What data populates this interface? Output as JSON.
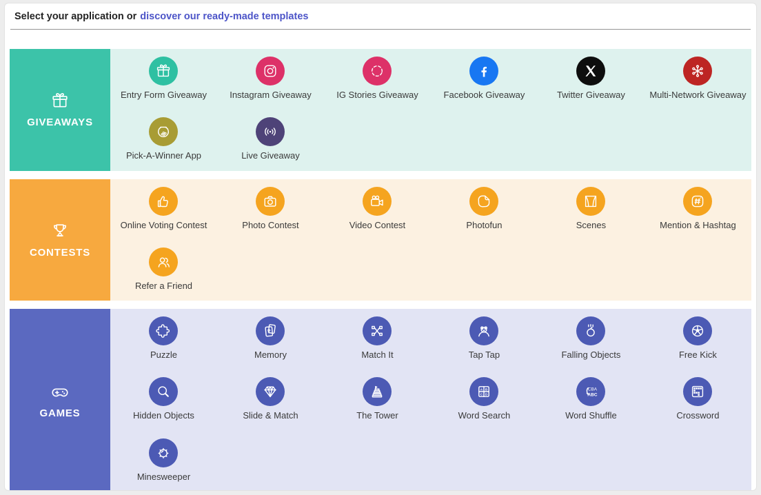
{
  "header": {
    "title_prefix": "Select your application or",
    "link_label": "discover our ready-made templates",
    "link_color": "#4d55c8",
    "divider_color": "#949494"
  },
  "sections": [
    {
      "id": "giveaways",
      "label": "GIVEAWAYS",
      "icon": "gift-icon",
      "block_color": "#3cc3a9",
      "bg_color": "#def2ee",
      "items": [
        {
          "label": "Entry Form Giveaway",
          "icon": "gift-icon",
          "color": "#2ec0a2"
        },
        {
          "label": "Instagram Giveaway",
          "icon": "instagram-icon",
          "color": "#dd3168"
        },
        {
          "label": "IG Stories Giveaway",
          "icon": "ig-stories-icon",
          "color": "#dd3168"
        },
        {
          "label": "Facebook Giveaway",
          "icon": "facebook-icon",
          "color": "#1877f2"
        },
        {
          "label": "Twitter Giveaway",
          "icon": "x-logo-icon",
          "color": "#0e0e0e"
        },
        {
          "label": "Multi-Network Giveaway",
          "icon": "multi-network-icon",
          "color": "#bd2523"
        },
        {
          "label": "Pick-A-Winner App",
          "icon": "fishbowl-icon",
          "color": "#a89c34"
        },
        {
          "label": "Live Giveaway",
          "icon": "broadcast-icon",
          "color": "#4e4378"
        }
      ]
    },
    {
      "id": "contests",
      "label": "CONTESTS",
      "icon": "trophy-icon",
      "block_color": "#f7a93f",
      "bg_color": "#fcf1e1",
      "items": [
        {
          "label": "Online Voting Contest",
          "icon": "thumbs-up-icon",
          "color": "#f5a41f"
        },
        {
          "label": "Photo Contest",
          "icon": "camera-icon",
          "color": "#f5a41f"
        },
        {
          "label": "Video Contest",
          "icon": "video-camera-icon",
          "color": "#f5a41f"
        },
        {
          "label": "Photofun",
          "icon": "sticker-icon",
          "color": "#f5a41f"
        },
        {
          "label": "Scenes",
          "icon": "scenes-icon",
          "color": "#f5a41f"
        },
        {
          "label": "Mention & Hashtag",
          "icon": "hashtag-icon",
          "color": "#f5a41f"
        },
        {
          "label": "Refer a Friend",
          "icon": "refer-friend-icon",
          "color": "#f5a41f"
        }
      ]
    },
    {
      "id": "games",
      "label": "GAMES",
      "icon": "gamepad-icon",
      "block_color": "#5b69c0",
      "bg_color": "#e2e4f4",
      "items": [
        {
          "label": "Puzzle",
          "icon": "puzzle-icon",
          "color": "#4c5ab4"
        },
        {
          "label": "Memory",
          "icon": "memory-cards-icon",
          "color": "#4c5ab4"
        },
        {
          "label": "Match It",
          "icon": "match-it-icon",
          "color": "#4c5ab4"
        },
        {
          "label": "Tap Tap",
          "icon": "mole-icon",
          "color": "#4c5ab4"
        },
        {
          "label": "Falling Objects",
          "icon": "falling-objects-icon",
          "color": "#4c5ab4"
        },
        {
          "label": "Free Kick",
          "icon": "soccer-ball-icon",
          "color": "#4c5ab4"
        },
        {
          "label": "Hidden Objects",
          "icon": "magnifier-icon",
          "color": "#4c5ab4"
        },
        {
          "label": "Slide & Match",
          "icon": "gem-icon",
          "color": "#4c5ab4"
        },
        {
          "label": "The Tower",
          "icon": "tower-icon",
          "color": "#4c5ab4"
        },
        {
          "label": "Word Search",
          "icon": "word-search-icon",
          "color": "#4c5ab4"
        },
        {
          "label": "Word Shuffle",
          "icon": "word-shuffle-icon",
          "color": "#4c5ab4"
        },
        {
          "label": "Crossword",
          "icon": "crossword-icon",
          "color": "#4c5ab4"
        },
        {
          "label": "Minesweeper",
          "icon": "mine-icon",
          "color": "#4c5ab4"
        }
      ]
    }
  ]
}
